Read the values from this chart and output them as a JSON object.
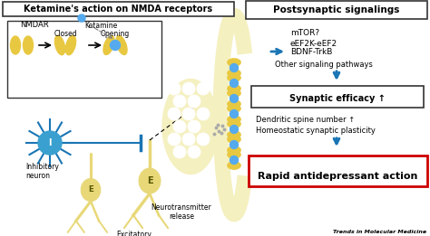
{
  "title_left": "Ketamine's action on NMDA receptors",
  "title_right": "Postsynaptic signalings",
  "text_mtor": "mTOR?",
  "text_eef": "eEF2K-eEF2",
  "text_bdnf": "BDNF-TrkB",
  "text_other": "Other signaling pathways",
  "text_synaptic": "Synaptic efficacy ↑",
  "text_dendritic": "Dendritic spine number ↑",
  "text_homeostatic": "Homeostatic synaptic plasticity",
  "text_rapid": "Rapid antidepressant action",
  "text_nmdar": "NMDAR",
  "text_ketamine": "Ketamine",
  "text_closed": "Closed",
  "text_opening": "Opening",
  "text_inhibitory": "Inhibitory\nneuron",
  "text_excitatory": "Excitatory\nneuron",
  "text_neurotransmitter": "Neurotransmitter\nrelease",
  "text_trends": "Trends in Molecular Medicine",
  "bg_color": "#ffffff",
  "box_left_color": "#333333",
  "box_right_color": "#333333",
  "box_rapid_color": "#cc0000",
  "box_synaptic_color": "#333333",
  "arrow_color": "#1a75b5",
  "neuron_color": "#e8d878",
  "neuron_inhibitory_color": "#3aa0d0",
  "nmda_color": "#e8c840",
  "ketamine_color": "#55aaee",
  "synapse_bg": "#f5f0c0",
  "receptor_yellow": "#e8c840",
  "receptor_blue": "#55aaee"
}
